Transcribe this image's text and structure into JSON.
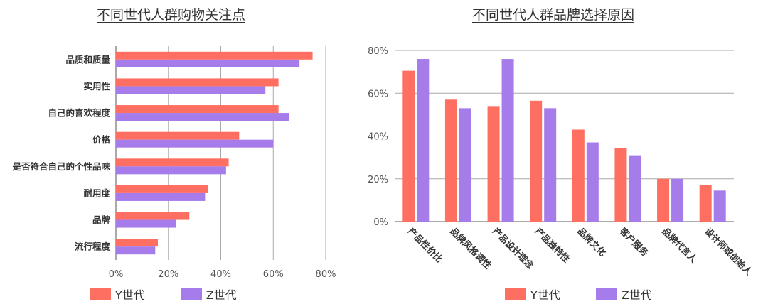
{
  "colors": {
    "y": "#ff6f61",
    "z": "#a57ce9"
  },
  "chart_data": [
    {
      "type": "bar",
      "orientation": "horizontal",
      "title": "不同世代人群购物关注点",
      "categories": [
        "品质和质量",
        "实用性",
        "自己的喜欢程度",
        "价格",
        "是否符合自己的个性品味",
        "耐用度",
        "品牌",
        "流行程度"
      ],
      "series": [
        {
          "name": "Y世代",
          "values": [
            75,
            62,
            62,
            47,
            43,
            35,
            28,
            16
          ]
        },
        {
          "name": "Z世代",
          "values": [
            70,
            57,
            66,
            60,
            42,
            34,
            23,
            15
          ]
        }
      ],
      "xlim": [
        0,
        80
      ],
      "ticks": [
        "0%",
        "20%",
        "40%",
        "60%",
        "80%"
      ],
      "legend": "bottom-left",
      "grid": true
    },
    {
      "type": "bar",
      "orientation": "vertical",
      "title": "不同世代人群品牌选择原因",
      "categories": [
        "产品性价比",
        "品牌风格调性",
        "产品设计理念",
        "产品独特性",
        "品牌文化",
        "客户服务",
        "品牌代言人",
        "设计师或创始人"
      ],
      "series": [
        {
          "name": "Y世代",
          "values": [
            70.5,
            57,
            54,
            56.5,
            43,
            34.5,
            20,
            17
          ]
        },
        {
          "name": "Z世代",
          "values": [
            76,
            53,
            76,
            53,
            37,
            31,
            20,
            14.5
          ]
        }
      ],
      "ylim": [
        0,
        80
      ],
      "ticks": [
        "0%",
        "20%",
        "40%",
        "60%",
        "80%"
      ],
      "legend": "bottom-center",
      "grid": true
    }
  ]
}
